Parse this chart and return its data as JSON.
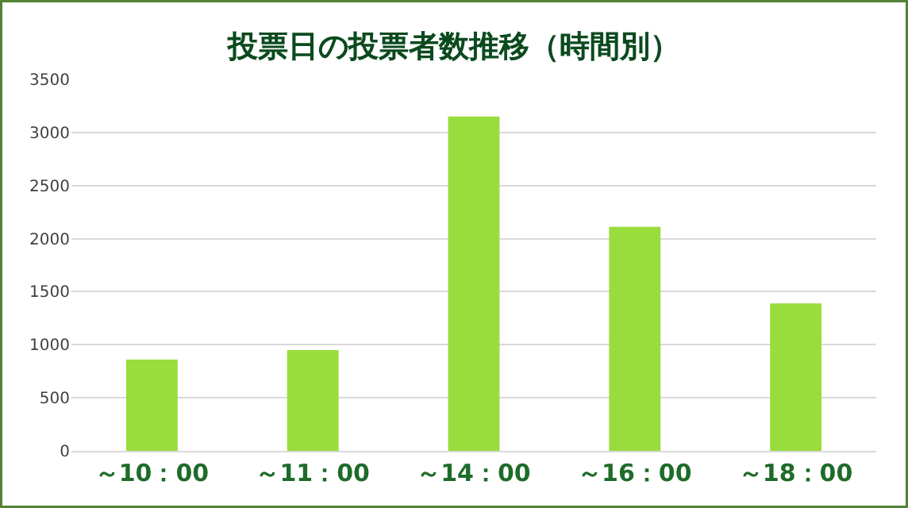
{
  "chart_data": {
    "type": "bar",
    "title": "投票日の投票者数推移（時間別）",
    "categories": [
      "～10：00",
      "～11：00",
      "～14：00",
      "～16：00",
      "～18：00"
    ],
    "values": [
      860,
      950,
      3150,
      2110,
      1390
    ],
    "color": "#99dd3d",
    "ylim": [
      0,
      3500
    ],
    "yticks": [
      0,
      500,
      1000,
      1500,
      2000,
      2500,
      3000,
      3500
    ],
    "grid": "y"
  }
}
